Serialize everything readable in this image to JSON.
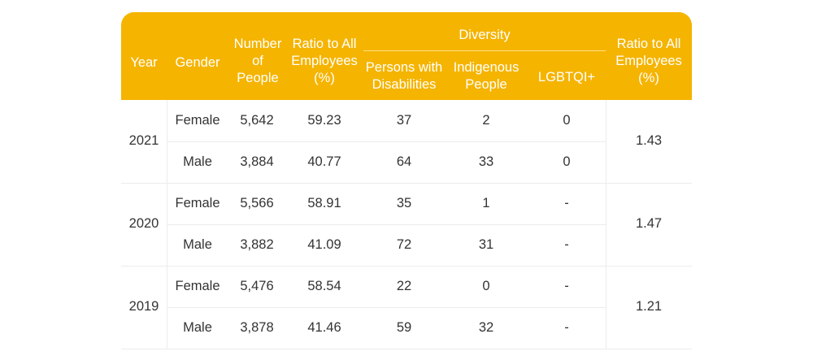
{
  "headers": {
    "year": "Year",
    "gender": "Gender",
    "number": [
      "Number",
      "of",
      "People"
    ],
    "ratio": [
      "Ratio to All",
      "Employees",
      "(%)"
    ],
    "diversity": "Diversity",
    "disabilities": [
      "Persons with",
      "Disabilities"
    ],
    "indigenous": [
      "Indigenous",
      "People"
    ],
    "lgbtqi": "LGBTQI+",
    "ratio_div": [
      "Ratio to All",
      "Employees",
      "(%)"
    ]
  },
  "groups": [
    {
      "year": "2021",
      "div_ratio": "1.43",
      "rows": [
        {
          "gender": "Female",
          "number": "5,642",
          "ratio": "59.23",
          "disabilities": "37",
          "indigenous": "2",
          "lgbtqi": "0"
        },
        {
          "gender": "Male",
          "number": "3,884",
          "ratio": "40.77",
          "disabilities": "64",
          "indigenous": "33",
          "lgbtqi": "0"
        }
      ]
    },
    {
      "year": "2020",
      "div_ratio": "1.47",
      "rows": [
        {
          "gender": "Female",
          "number": "5,566",
          "ratio": "58.91",
          "disabilities": "35",
          "indigenous": "1",
          "lgbtqi": "-"
        },
        {
          "gender": "Male",
          "number": "3,882",
          "ratio": "41.09",
          "disabilities": "72",
          "indigenous": "31",
          "lgbtqi": "-"
        }
      ]
    },
    {
      "year": "2019",
      "div_ratio": "1.21",
      "rows": [
        {
          "gender": "Female",
          "number": "5,476",
          "ratio": "58.54",
          "disabilities": "22",
          "indigenous": "0",
          "lgbtqi": "-"
        },
        {
          "gender": "Male",
          "number": "3,878",
          "ratio": "41.46",
          "disabilities": "59",
          "indigenous": "32",
          "lgbtqi": "-"
        }
      ]
    }
  ]
}
